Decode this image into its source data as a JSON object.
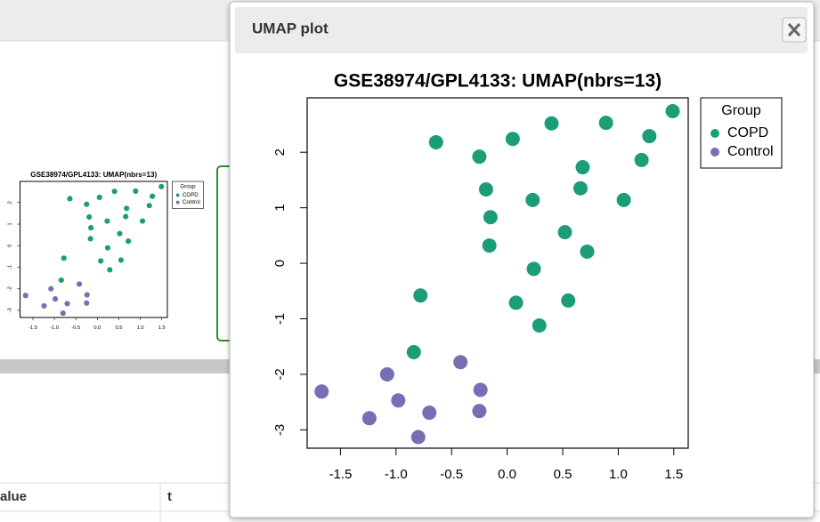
{
  "modal": {
    "title": "UMAP plot"
  },
  "chart_data": {
    "type": "scatter",
    "title": "GSE38974/GPL4133: UMAP(nbrs=13)",
    "legend_title": "Group",
    "legend": "topright",
    "xlim": [
      -1.8,
      1.63
    ],
    "ylim": [
      -3.33,
      2.98
    ],
    "xticks": [
      -1.5,
      {
        "value": -1,
        "label": "-1.0"
      },
      -0.5,
      {
        "value": 0,
        "label": "0.0"
      },
      0.5,
      {
        "value": 1,
        "label": "1.0"
      },
      1.5
    ],
    "yticks": [
      -3,
      -2,
      -1,
      0,
      1,
      2
    ],
    "series": [
      {
        "name": "COPD",
        "color": "#1b9e77",
        "x": [
          1.49,
          0.89,
          0.4,
          1.28,
          0.05,
          -0.64,
          -0.25,
          1.21,
          0.68,
          -0.19,
          0.66,
          0.23,
          1.05,
          -0.15,
          0.52,
          -0.16,
          0.72,
          0.24,
          -0.78,
          0.08,
          0.55,
          0.29,
          -0.84
        ],
        "y": [
          2.74,
          2.53,
          2.52,
          2.29,
          2.24,
          2.18,
          1.92,
          1.86,
          1.73,
          1.33,
          1.35,
          1.14,
          1.14,
          0.83,
          0.56,
          0.32,
          0.21,
          -0.1,
          -0.58,
          -0.71,
          -0.67,
          -1.12,
          -1.6
        ]
      },
      {
        "name": "Control",
        "color": "#7570b3",
        "x": [
          -1.67,
          -1.08,
          -0.42,
          -0.24,
          -0.98,
          -1.24,
          -0.7,
          -0.25,
          -0.8
        ],
        "y": [
          -2.31,
          -2.0,
          -1.78,
          -2.28,
          -2.47,
          -2.79,
          -2.69,
          -2.66,
          -3.13
        ]
      }
    ]
  },
  "table": {
    "headers": [
      "alue",
      "t"
    ]
  }
}
